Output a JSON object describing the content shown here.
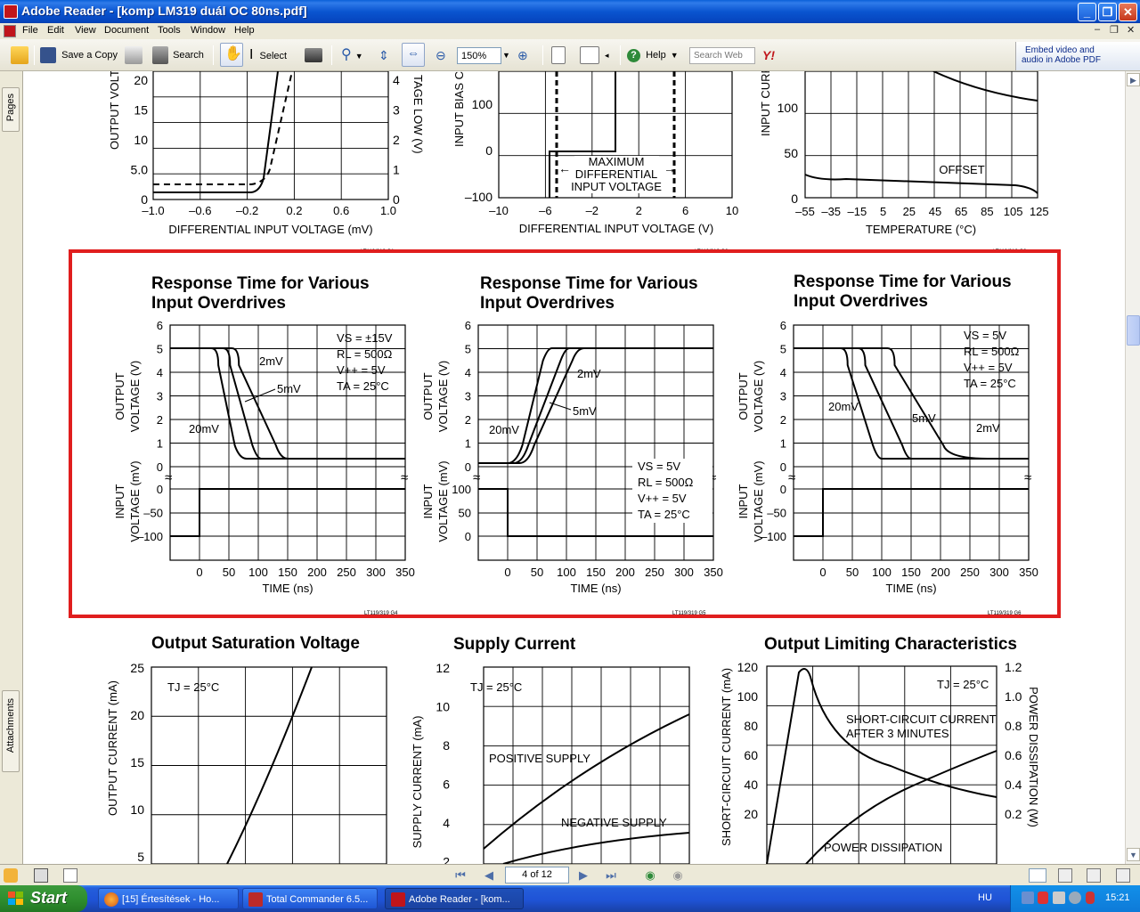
{
  "window": {
    "title": "Adobe Reader - [komp LM319 duál OC 80ns.pdf]"
  },
  "menu": [
    "File",
    "Edit",
    "View",
    "Document",
    "Tools",
    "Window",
    "Help"
  ],
  "toolbar": {
    "save_copy_label": "Save a Copy",
    "search_label": "Search",
    "select_label": "Select",
    "zoom_value": "150%",
    "help_label": "Help",
    "search_web_placeholder": "Search Web",
    "embed_line1": "Embed video and",
    "embed_line2": "audio in Adobe PDF"
  },
  "left_panel": {
    "pages_tab": "Pages",
    "attachments_tab": "Attachments"
  },
  "status": {
    "page_indicator": "4 of 12"
  },
  "taskbar": {
    "start_label": "Start",
    "tasks": [
      {
        "label": "[15] Értesítések - Ho..."
      },
      {
        "label": "Total Commander 6.5..."
      },
      {
        "label": "Adobe Reader - [kom..."
      }
    ],
    "language": "HU",
    "clock": "15:21"
  },
  "document": {
    "top_row": {
      "left": {
        "y_left_label": "OUTPUT VOLTA",
        "y_right_label": "TAGE LOW (V)",
        "y_left_ticks": [
          "20",
          "15",
          "10",
          "5.0",
          "0"
        ],
        "y_right_ticks": [
          "4",
          "3",
          "2",
          "1",
          "0"
        ],
        "x_ticks": [
          "–1.0",
          "–0.6",
          "–0.2",
          "0.2",
          "0.6",
          "1.0"
        ],
        "xlabel": "DIFFERENTIAL INPUT VOLTAGE (mV)",
        "code": "LT119/319 G1"
      },
      "middle": {
        "ylabel": "INPUT BIAS CU",
        "y_ticks": [
          "100",
          "0",
          "–100"
        ],
        "x_ticks": [
          "–10",
          "–6",
          "–2",
          "2",
          "6",
          "10"
        ],
        "annotation": [
          "MAXIMUM",
          "DIFFERENTIAL",
          "INPUT VOLTAGE"
        ],
        "xlabel": "DIFFERENTIAL INPUT VOLTAGE (V)",
        "code": "LT119/319 G2"
      },
      "right": {
        "ylabel": "INPUT CURR",
        "y_ticks": [
          "100",
          "50",
          "0"
        ],
        "x_ticks": [
          "–55",
          "–35",
          "–15",
          "5",
          "25",
          "45",
          "65",
          "85",
          "105",
          "125"
        ],
        "offset_label": "OFFSET",
        "xlabel": "TEMPERATURE (°C)",
        "code": "LT119/319 G3"
      }
    },
    "response_charts": [
      {
        "title1": "Response Time for Various",
        "title2": "Input Overdrives",
        "cond": [
          "VS = ±15V",
          "RL = 500Ω",
          "V++ = 5V",
          "TA = 25°C"
        ],
        "code": "LT119/319 G4"
      },
      {
        "title1": "Response Time for Various",
        "title2": "Input Overdrives",
        "cond": [
          "VS = 5V",
          "RL = 500Ω",
          "V++ = 5V",
          "TA = 25°C"
        ],
        "code": "LT119/319 G5"
      },
      {
        "title1": "Response Time for Various",
        "title2": "Input Overdrives",
        "cond": [
          "VS = 5V",
          "RL = 500Ω",
          "V++ = 5V",
          "TA = 25°C"
        ],
        "code": "LT119/319 G6"
      }
    ],
    "response_common": {
      "out_ylabel1": "OUTPUT",
      "out_ylabel2": "VOLTAGE (V)",
      "in_ylabel1": "INPUT",
      "in_ylabel2": "VOLTAGE (mV)",
      "out_ticks": [
        "6",
        "5",
        "4",
        "3",
        "2",
        "1",
        "0"
      ],
      "in_ticks_neg": [
        "0",
        "–50",
        "–100"
      ],
      "in_ticks_pos": [
        "100",
        "50",
        "0"
      ],
      "x_ticks": [
        "0",
        "50",
        "100",
        "150",
        "200",
        "250",
        "300",
        "350"
      ],
      "xlabel": "TIME (ns)",
      "od": [
        "2mV",
        "5mV",
        "20mV"
      ]
    },
    "bottom_row": {
      "sat": {
        "title": "Output Saturation Voltage",
        "cond": "TJ = 25°C",
        "ylabel": "OUTPUT CURRENT (mA)",
        "y_ticks": [
          "25",
          "20",
          "15",
          "10",
          "5"
        ]
      },
      "supply": {
        "title": "Supply Current",
        "cond": "TJ = 25°C",
        "ylabel": "SUPPLY CURRENT (mA)",
        "y_ticks": [
          "12",
          "10",
          "8",
          "6",
          "4",
          "2"
        ],
        "pos_label": "POSITIVE SUPPLY",
        "neg_label": "NEGATIVE SUPPLY"
      },
      "limit": {
        "title": "Output Limiting Characteristics",
        "cond": "TJ = 25°C",
        "ylabel_left": "SHORT-CIRCUIT CURRENT (mA)",
        "ylabel_right": "POWER DISSIPATION (W)",
        "y_left_ticks": [
          "120",
          "100",
          "80",
          "60",
          "40",
          "20"
        ],
        "y_right_ticks": [
          "1.2",
          "1.0",
          "0.8",
          "0.6",
          "0.4",
          "0.2"
        ],
        "sc_label1": "SHORT-CIRCUIT CURRENT",
        "sc_label2": "AFTER 3 MINUTES",
        "pd_label": "POWER DISSIPATION"
      }
    }
  },
  "colors": {
    "highlight": "#e01e1e"
  }
}
